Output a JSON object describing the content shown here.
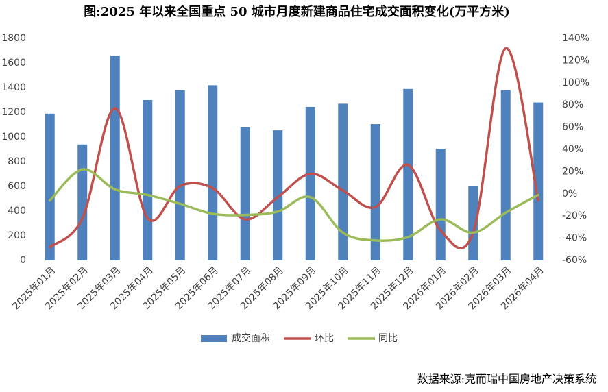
{
  "chart_data": {
    "type": "bar",
    "title": "图:2025 年以来全国重点 50 城市月度新建商品住宅成交面积变化(万平方米)",
    "source": "数据来源:克而瑞中国房地产决策系统",
    "categories": [
      "2025年01月",
      "2025年02月",
      "2025年03月",
      "2025年04月",
      "2025年05月",
      "2025年06月",
      "2025年07月",
      "2025年08月",
      "2025年09月",
      "2025年10月",
      "2025年11月",
      "2025年12月",
      "2026年01月",
      "2026年02月",
      "2026年03月",
      "2026年04月"
    ],
    "series": [
      {
        "name": "成交面积",
        "type": "bar",
        "color": "#4f81bd",
        "values": [
          1190,
          940,
          1660,
          1300,
          1380,
          1420,
          1080,
          1055,
          1245,
          1270,
          1105,
          1390,
          905,
          600,
          1380,
          1280
        ]
      },
      {
        "name": "环比",
        "type": "line",
        "axis": "y2",
        "color": "#c0504d",
        "values": [
          -48,
          -22,
          77,
          -22,
          7,
          5,
          -23,
          -3,
          18,
          3,
          -12,
          26,
          -33,
          -35,
          131,
          -6
        ]
      },
      {
        "name": "同比",
        "type": "line",
        "axis": "y2",
        "color": "#9bbb59",
        "values": [
          -6,
          22,
          4,
          -1,
          -9,
          -18,
          -19,
          -16,
          -3,
          -35,
          -42,
          -39,
          -23,
          -35,
          -17,
          -1
        ]
      }
    ],
    "ylim": [
      0,
      1800
    ],
    "yticks": [
      0,
      200,
      400,
      600,
      800,
      1000,
      1200,
      1400,
      1600,
      1800
    ],
    "y2lim": [
      -60,
      140
    ],
    "y2ticks": [
      {
        "value": -60,
        "label": "-60%"
      },
      {
        "value": -40,
        "label": "-40%"
      },
      {
        "value": -20,
        "label": "-20%"
      },
      {
        "value": 0,
        "label": "0%"
      },
      {
        "value": 20,
        "label": "20%"
      },
      {
        "value": 40,
        "label": "40%"
      },
      {
        "value": 60,
        "label": "60%"
      },
      {
        "value": 80,
        "label": "80%"
      },
      {
        "value": 100,
        "label": "100%"
      },
      {
        "value": 120,
        "label": "120%"
      },
      {
        "value": 140,
        "label": "140%"
      }
    ],
    "grid": false,
    "legend": "bottom"
  }
}
